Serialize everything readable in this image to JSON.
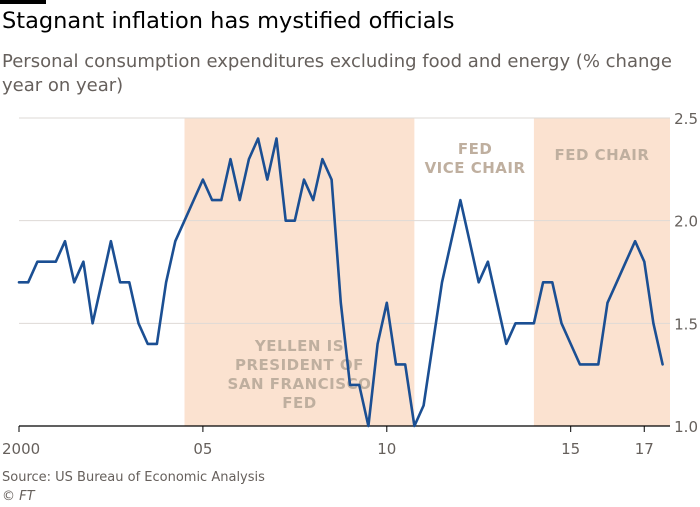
{
  "title": "Stagnant inflation has mystified officials",
  "subtitle": "Personal consumption expenditures excluding food and energy (% change year on year)",
  "source": "Source: US Bureau of Economic Analysis",
  "credit": "© FT",
  "colors": {
    "line": "#1b4f93",
    "shade": "#fbe2d0",
    "annotation": "#bfaf9f",
    "axis": "#66605c",
    "grid": "#dedad6"
  },
  "chart_data": {
    "type": "line",
    "x_tick_labels": [
      {
        "value": 2000,
        "label": "2000"
      },
      {
        "value": 2005,
        "label": "05"
      },
      {
        "value": 2010,
        "label": "10"
      },
      {
        "value": 2015,
        "label": "15"
      },
      {
        "value": 2017,
        "label": "17"
      }
    ],
    "y_ticks": [
      1.0,
      1.5,
      2.0,
      2.5
    ],
    "y_tick_labels": [
      "1.0",
      "1.5",
      "2.0",
      "2.5"
    ],
    "ylim": [
      1.0,
      2.5
    ],
    "xlim": [
      2000,
      2017.7
    ],
    "y_axis_side": "right",
    "grid": true,
    "shaded_periods": [
      {
        "start": 2004.5,
        "end": 2010.75,
        "label": [
          "YELLEN IS",
          "PRESIDENT OF",
          "SAN FRANCISCO",
          "FED"
        ],
        "label_position": "bottom"
      },
      {
        "start": 2014.0,
        "end": 2017.7,
        "label": [
          "FED CHAIR"
        ],
        "label_position": "top"
      }
    ],
    "annotations": [
      {
        "label": [
          "FED",
          "VICE CHAIR"
        ],
        "x": 2012.4,
        "position": "top"
      }
    ],
    "series": [
      {
        "x": [
          2000.0,
          2000.25,
          2000.5,
          2000.75,
          2001.0,
          2001.25,
          2001.5,
          2001.75,
          2002.0,
          2002.25,
          2002.5,
          2002.75,
          2003.0,
          2003.25,
          2003.5,
          2003.75,
          2004.0,
          2004.25,
          2004.5,
          2004.75,
          2005.0,
          2005.25,
          2005.5,
          2005.75,
          2006.0,
          2006.25,
          2006.5,
          2006.75,
          2007.0,
          2007.25,
          2007.5,
          2007.75,
          2008.0,
          2008.25,
          2008.5,
          2008.75,
          2009.0,
          2009.25,
          2009.5,
          2009.75,
          2010.0,
          2010.25,
          2010.5,
          2010.75,
          2011.0,
          2011.25,
          2011.5,
          2011.75,
          2012.0,
          2012.25,
          2012.5,
          2012.75,
          2013.0,
          2013.25,
          2013.5,
          2013.75,
          2014.0,
          2014.25,
          2014.5,
          2014.75,
          2015.0,
          2015.25,
          2015.5,
          2015.75,
          2016.0,
          2016.25,
          2016.5,
          2016.75,
          2017.0,
          2017.25,
          2017.5
        ],
        "y": [
          1.7,
          1.7,
          1.8,
          1.8,
          1.8,
          1.9,
          1.7,
          1.8,
          1.5,
          1.7,
          1.9,
          1.7,
          1.7,
          1.5,
          1.4,
          1.4,
          1.7,
          1.9,
          2.0,
          2.1,
          2.2,
          2.1,
          2.1,
          2.3,
          2.1,
          2.3,
          2.4,
          2.2,
          2.4,
          2.0,
          2.0,
          2.2,
          2.1,
          2.3,
          2.2,
          1.6,
          1.2,
          1.2,
          1.0,
          1.4,
          1.6,
          1.3,
          1.3,
          1.0,
          1.1,
          1.4,
          1.7,
          1.9,
          2.1,
          1.9,
          1.7,
          1.8,
          1.6,
          1.4,
          1.5,
          1.5,
          1.5,
          1.7,
          1.7,
          1.5,
          1.4,
          1.3,
          1.3,
          1.3,
          1.6,
          1.7,
          1.8,
          1.9,
          1.8,
          1.5,
          1.3
        ]
      }
    ]
  }
}
